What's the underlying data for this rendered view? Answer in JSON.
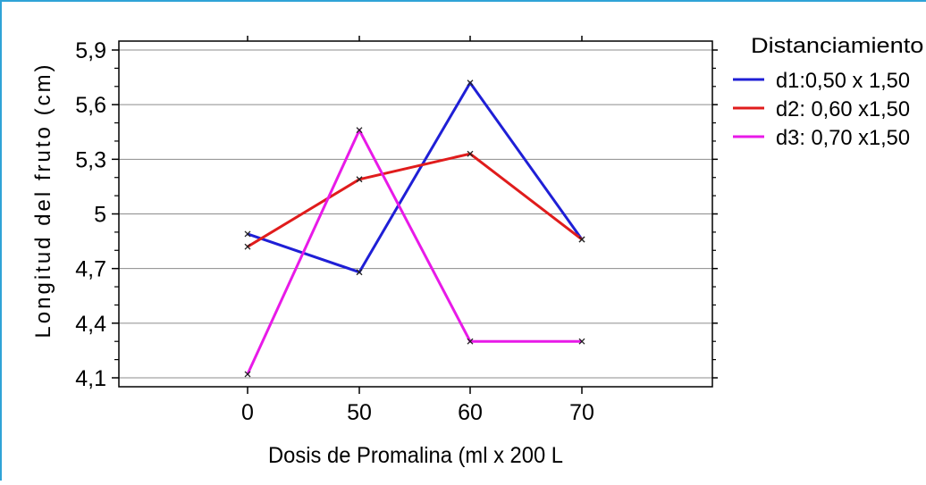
{
  "chart_data": {
    "type": "line",
    "xlabel": "Dosis de Promalina (ml x 200 L",
    "ylabel": "Longitud del fruto (cm)",
    "categories": [
      "0",
      "50",
      "60",
      "70"
    ],
    "yticks": [
      "5,9",
      "5,6",
      "5,3",
      "5",
      "4,7",
      "4,4",
      "4,1"
    ],
    "ylim": [
      4.1,
      5.9
    ],
    "legend_title": "Distanciamiento (",
    "legend_position": "right",
    "grid": "horizontal",
    "series": [
      {
        "name": "d1:0,50 x 1,50",
        "color": "#1f1fd6",
        "values": [
          4.89,
          4.68,
          5.72,
          4.86
        ]
      },
      {
        "name": "d2: 0,60 x1,50",
        "color": "#e01c1c",
        "values": [
          4.82,
          5.19,
          5.33,
          4.86
        ]
      },
      {
        "name": "d3: 0,70 x1,50",
        "color": "#e81ae8",
        "values": [
          4.12,
          5.46,
          4.3,
          4.3
        ]
      }
    ]
  }
}
